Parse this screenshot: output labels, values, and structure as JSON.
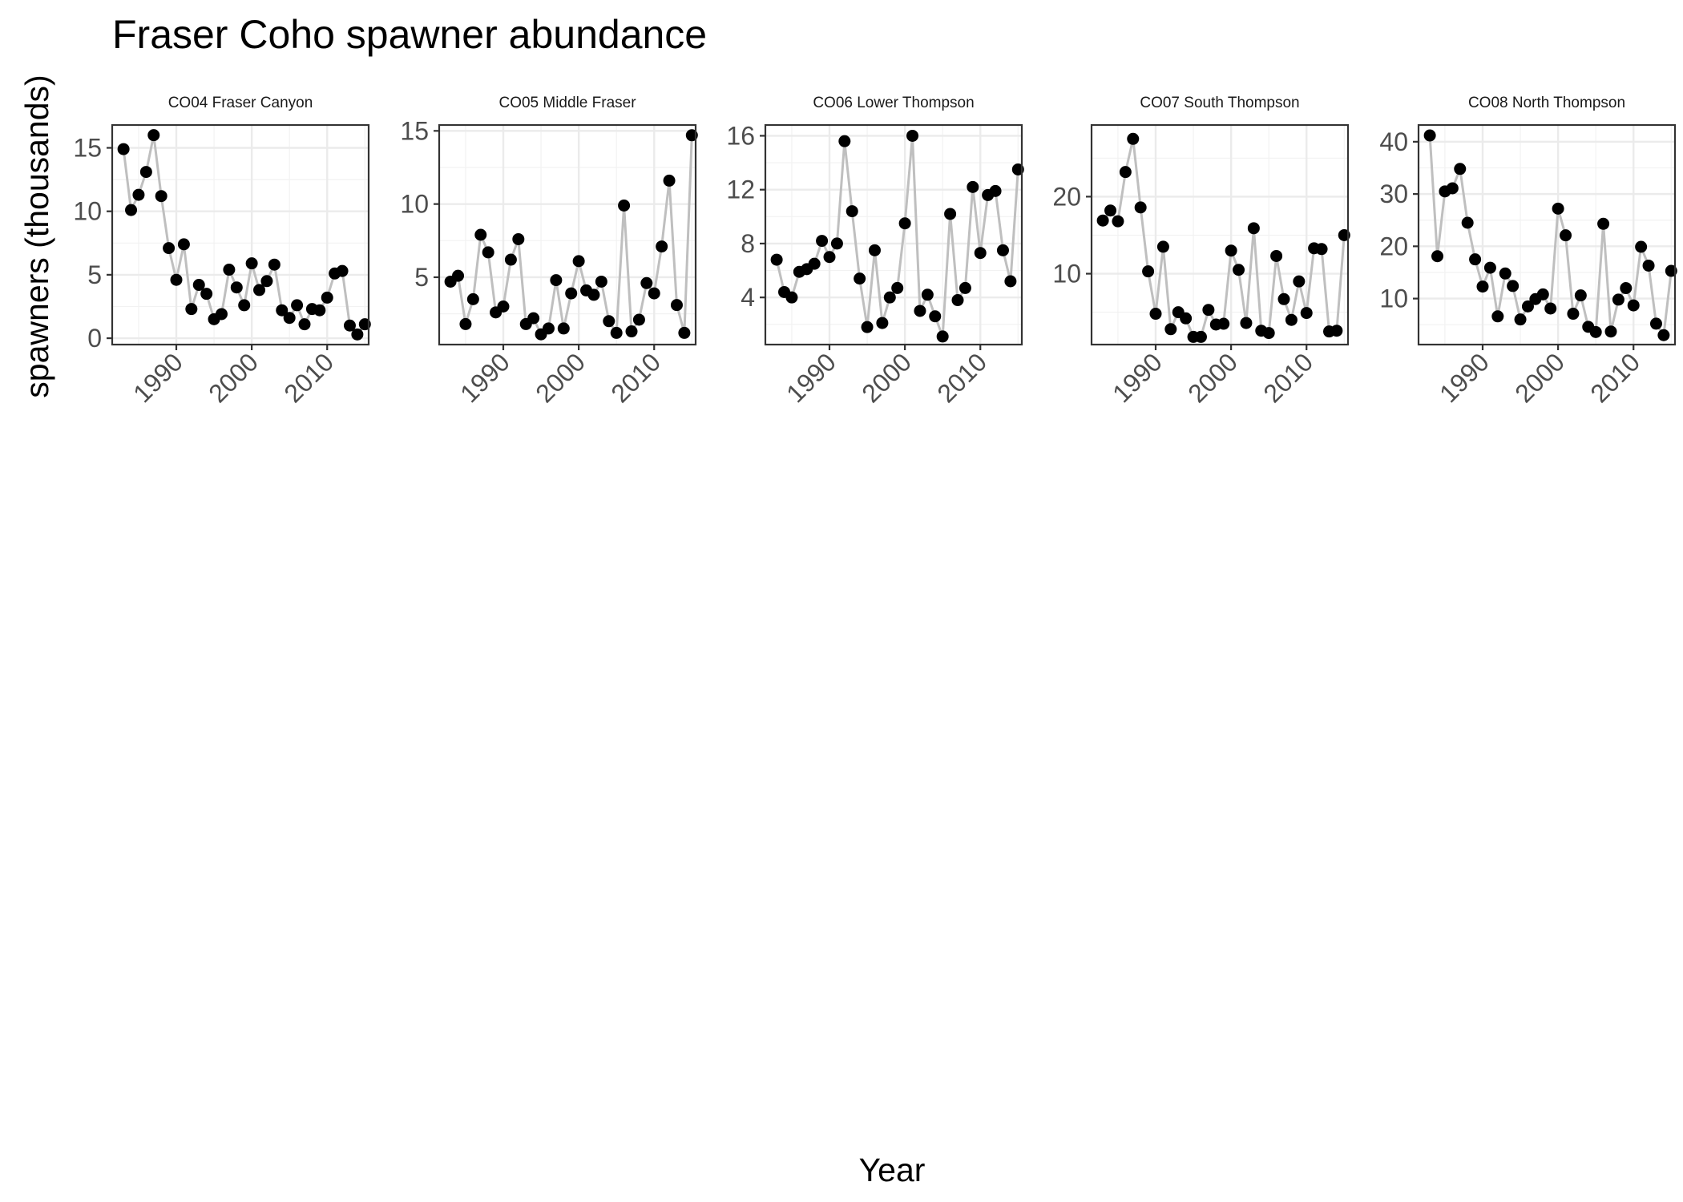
{
  "chart_data": {
    "type": "scatter",
    "title": "Fraser Coho spawner abundance",
    "xlabel": "Year",
    "ylabel": "spawners (thousands)",
    "grid": true,
    "x_range": [
      1981.5,
      2015.5
    ],
    "x_ticks": [
      1990,
      2000,
      2010
    ],
    "panels": [
      {
        "name": "CO04 Fraser Canyon",
        "y_range": [
          -0.5,
          16.8
        ],
        "y_ticks": [
          0,
          5,
          10,
          15
        ],
        "points": [
          [
            1983,
            14.9
          ],
          [
            1984,
            10.1
          ],
          [
            1985,
            11.3
          ],
          [
            1986,
            13.1
          ],
          [
            1987,
            16.0
          ],
          [
            1988,
            11.2
          ],
          [
            1989,
            7.1
          ],
          [
            1990,
            4.6
          ],
          [
            1991,
            7.4
          ],
          [
            1992,
            2.3
          ],
          [
            1993,
            4.2
          ],
          [
            1994,
            3.5
          ],
          [
            1995,
            1.5
          ],
          [
            1996,
            1.9
          ],
          [
            1997,
            5.4
          ],
          [
            1998,
            4.0
          ],
          [
            1999,
            2.6
          ],
          [
            2000,
            5.9
          ],
          [
            2001,
            3.8
          ],
          [
            2002,
            4.5
          ],
          [
            2003,
            5.8
          ],
          [
            2004,
            2.2
          ],
          [
            2005,
            1.6
          ],
          [
            2006,
            2.6
          ],
          [
            2007,
            1.1
          ],
          [
            2008,
            2.3
          ],
          [
            2009,
            2.2
          ],
          [
            2010,
            3.2
          ],
          [
            2011,
            5.1
          ],
          [
            2012,
            5.3
          ],
          [
            2013,
            1.0
          ],
          [
            2014,
            0.3
          ],
          [
            2015,
            1.1
          ]
        ]
      },
      {
        "name": "CO05 Middle Fraser",
        "y_range": [
          0.4,
          15.4
        ],
        "y_ticks": [
          5,
          10,
          15
        ],
        "points": [
          [
            1983,
            4.7
          ],
          [
            1984,
            5.1
          ],
          [
            1985,
            1.8
          ],
          [
            1986,
            3.5
          ],
          [
            1987,
            7.9
          ],
          [
            1988,
            6.7
          ],
          [
            1989,
            2.6
          ],
          [
            1990,
            3.0
          ],
          [
            1991,
            6.2
          ],
          [
            1992,
            7.6
          ],
          [
            1993,
            1.8
          ],
          [
            1994,
            2.2
          ],
          [
            1995,
            1.1
          ],
          [
            1996,
            1.5
          ],
          [
            1997,
            4.8
          ],
          [
            1998,
            1.5
          ],
          [
            1999,
            3.9
          ],
          [
            2000,
            6.1
          ],
          [
            2001,
            4.1
          ],
          [
            2002,
            3.8
          ],
          [
            2003,
            4.7
          ],
          [
            2004,
            2.0
          ],
          [
            2005,
            1.2
          ],
          [
            2006,
            9.9
          ],
          [
            2007,
            1.3
          ],
          [
            2008,
            2.1
          ],
          [
            2009,
            4.6
          ],
          [
            2010,
            3.9
          ],
          [
            2011,
            7.1
          ],
          [
            2012,
            11.6
          ],
          [
            2013,
            3.1
          ],
          [
            2014,
            1.2
          ],
          [
            2015,
            14.7
          ]
        ]
      },
      {
        "name": "CO06 Lower Thompson",
        "y_range": [
          0.5,
          16.8
        ],
        "y_ticks": [
          4,
          8,
          12,
          16
        ],
        "points": [
          [
            1983,
            6.8
          ],
          [
            1984,
            4.4
          ],
          [
            1985,
            4.0
          ],
          [
            1986,
            5.9
          ],
          [
            1987,
            6.1
          ],
          [
            1988,
            6.5
          ],
          [
            1989,
            8.2
          ],
          [
            1990,
            7.0
          ],
          [
            1991,
            8.0
          ],
          [
            1992,
            15.6
          ],
          [
            1993,
            10.4
          ],
          [
            1994,
            5.4
          ],
          [
            1995,
            1.8
          ],
          [
            1996,
            7.5
          ],
          [
            1997,
            2.1
          ],
          [
            1998,
            4.0
          ],
          [
            1999,
            4.7
          ],
          [
            2000,
            9.5
          ],
          [
            2001,
            16.0
          ],
          [
            2002,
            3.0
          ],
          [
            2003,
            4.2
          ],
          [
            2004,
            2.6
          ],
          [
            2005,
            1.1
          ],
          [
            2006,
            10.2
          ],
          [
            2007,
            3.8
          ],
          [
            2008,
            4.7
          ],
          [
            2009,
            12.2
          ],
          [
            2010,
            7.3
          ],
          [
            2011,
            11.6
          ],
          [
            2012,
            11.9
          ],
          [
            2013,
            7.5
          ],
          [
            2014,
            5.2
          ],
          [
            2015,
            13.5
          ]
        ]
      },
      {
        "name": "CO07 South Thompson",
        "y_range": [
          0.8,
          29.3
        ],
        "y_ticks": [
          10,
          20
        ],
        "points": [
          [
            1983,
            16.9
          ],
          [
            1984,
            18.2
          ],
          [
            1985,
            16.8
          ],
          [
            1986,
            23.2
          ],
          [
            1987,
            27.5
          ],
          [
            1988,
            18.6
          ],
          [
            1989,
            10.3
          ],
          [
            1990,
            4.8
          ],
          [
            1991,
            13.5
          ],
          [
            1992,
            2.8
          ],
          [
            1993,
            5.0
          ],
          [
            1994,
            4.2
          ],
          [
            1995,
            1.8
          ],
          [
            1996,
            1.8
          ],
          [
            1997,
            5.3
          ],
          [
            1998,
            3.4
          ],
          [
            1999,
            3.5
          ],
          [
            2000,
            13.0
          ],
          [
            2001,
            10.5
          ],
          [
            2002,
            3.6
          ],
          [
            2003,
            15.9
          ],
          [
            2004,
            2.6
          ],
          [
            2005,
            2.3
          ],
          [
            2006,
            12.3
          ],
          [
            2007,
            6.7
          ],
          [
            2008,
            4.0
          ],
          [
            2009,
            9.0
          ],
          [
            2010,
            4.9
          ],
          [
            2011,
            13.3
          ],
          [
            2012,
            13.2
          ],
          [
            2013,
            2.5
          ],
          [
            2014,
            2.6
          ],
          [
            2015,
            15.0
          ]
        ]
      },
      {
        "name": "CO08 North Thompson",
        "y_range": [
          1.2,
          43.2
        ],
        "y_ticks": [
          10,
          20,
          30,
          40
        ],
        "points": [
          [
            1983,
            41.2
          ],
          [
            1984,
            18.1
          ],
          [
            1985,
            30.5
          ],
          [
            1986,
            31.1
          ],
          [
            1987,
            34.8
          ],
          [
            1988,
            24.5
          ],
          [
            1989,
            17.5
          ],
          [
            1990,
            12.3
          ],
          [
            1991,
            15.9
          ],
          [
            1992,
            6.6
          ],
          [
            1993,
            14.8
          ],
          [
            1994,
            12.4
          ],
          [
            1995,
            6.0
          ],
          [
            1996,
            8.5
          ],
          [
            1997,
            9.9
          ],
          [
            1998,
            10.8
          ],
          [
            1999,
            8.1
          ],
          [
            2000,
            27.2
          ],
          [
            2001,
            22.1
          ],
          [
            2002,
            7.1
          ],
          [
            2003,
            10.6
          ],
          [
            2004,
            4.6
          ],
          [
            2005,
            3.6
          ],
          [
            2006,
            24.3
          ],
          [
            2007,
            3.7
          ],
          [
            2008,
            9.8
          ],
          [
            2009,
            12.0
          ],
          [
            2010,
            8.7
          ],
          [
            2011,
            19.9
          ],
          [
            2012,
            16.3
          ],
          [
            2013,
            5.2
          ],
          [
            2014,
            3.0
          ],
          [
            2015,
            15.3
          ]
        ]
      }
    ]
  }
}
